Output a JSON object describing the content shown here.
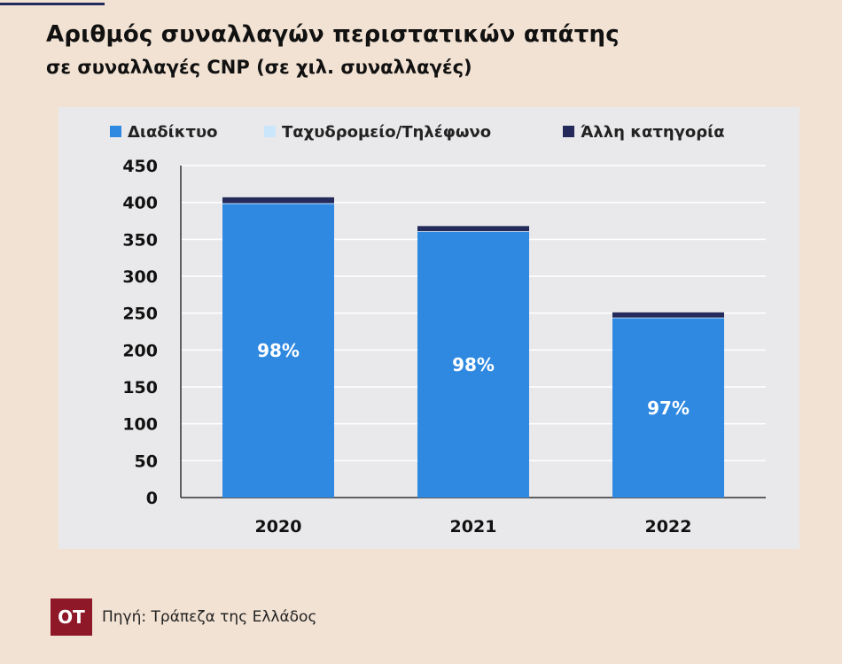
{
  "title": "Αριθμός συναλλαγών περιστατικών απάτης",
  "subtitle": "σε συναλλαγές CNP (σε χιλ. συναλλαγές)",
  "footer": {
    "logo_text": "OT",
    "source": "Πηγή: Τράπεζα της Ελλάδος"
  },
  "colors": {
    "internet": "#2f89e1",
    "mail_phone": "#c9e6fb",
    "other": "#242a5a",
    "panel": "#e9e9eb",
    "background": "#f2e2d3"
  },
  "chart_data": {
    "type": "bar",
    "stacked": true,
    "categories": [
      "2020",
      "2021",
      "2022"
    ],
    "series": [
      {
        "name": "Διαδίκτυο",
        "values": [
          398,
          360,
          243
        ],
        "color": "#2f89e1"
      },
      {
        "name": "Ταχυδρομείο/Τηλέφωνο",
        "values": [
          1,
          1,
          1
        ],
        "color": "#c9e6fb"
      },
      {
        "name": "Άλλη κατηγορία",
        "values": [
          8,
          7,
          7
        ],
        "color": "#242a5a"
      }
    ],
    "data_labels": [
      "98%",
      "98%",
      "97%"
    ],
    "ylim": [
      0,
      450
    ],
    "yticks": [
      "0",
      "50",
      "100",
      "150",
      "200",
      "250",
      "300",
      "350",
      "400",
      "450"
    ],
    "grid": true,
    "legend_position": "top"
  }
}
